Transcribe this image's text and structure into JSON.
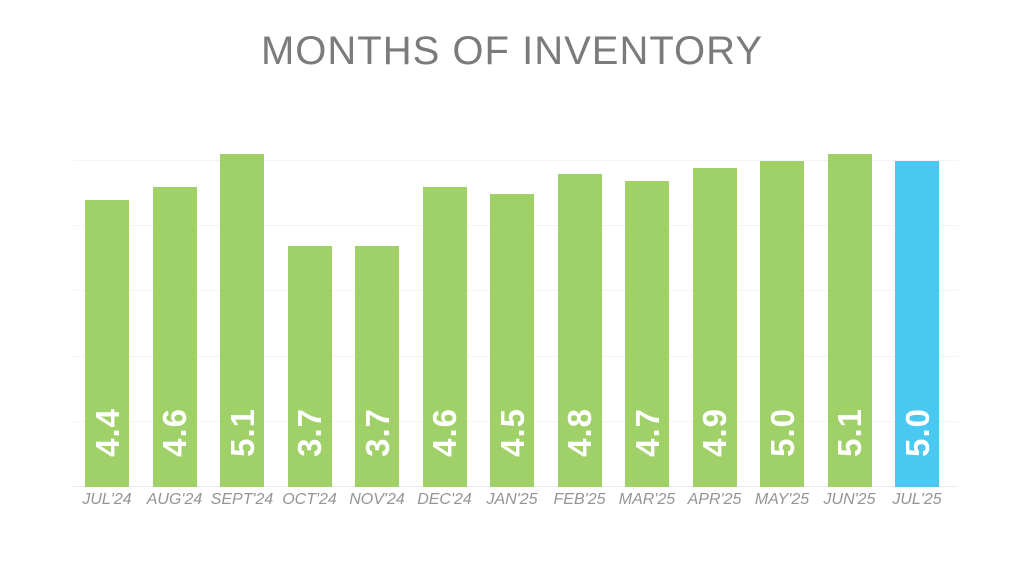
{
  "chart_data": {
    "type": "bar",
    "title": "MONTHS OF INVENTORY",
    "categories": [
      "JUL'24",
      "AUG'24",
      "SEPT'24",
      "OCT'24",
      "NOV'24",
      "DEC'24",
      "JAN'25",
      "FEB'25",
      "MAR'25",
      "APR'25",
      "MAY'25",
      "JUN'25",
      "JUL'25"
    ],
    "values": [
      4.4,
      4.6,
      5.1,
      3.7,
      3.7,
      4.6,
      4.5,
      4.8,
      4.7,
      4.9,
      5.0,
      5.1,
      5.0
    ],
    "value_labels": [
      "4.4",
      "4.6",
      "5.1",
      "3.7",
      "3.7",
      "4.6",
      "4.5",
      "4.8",
      "4.7",
      "4.9",
      "5.0",
      "5.1",
      "5.0"
    ],
    "highlight_index": 12,
    "xlabel": "",
    "ylabel": "",
    "ylim": [
      0,
      5.32
    ],
    "y_gridlines": [
      1,
      2,
      3,
      4,
      5
    ],
    "grid": true,
    "legend": "none",
    "value_label_rotation": -90,
    "colors": {
      "bar_default": "#a0d168",
      "bar_highlight": "#49c8f2",
      "title": "#7b7b7b",
      "axis_label": "#949494",
      "value_label": "#ffffff",
      "gridline": "#f4f4f4",
      "baseline": "#ececec",
      "background": "#ffffff"
    }
  }
}
